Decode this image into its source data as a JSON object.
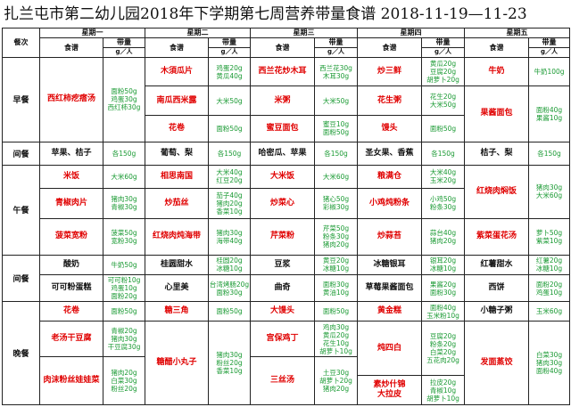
{
  "title": "扎兰屯市第二幼儿园2018年下学期第七周营养带量食谱  2018-11-19—11-23",
  "header": {
    "meal_col": "餐次",
    "days": [
      "星期一",
      "星期二",
      "星期三",
      "星期四",
      "星期五"
    ],
    "menu_label": "食谱",
    "qty_label": "带量",
    "unit_label": "g／人"
  },
  "meals": {
    "breakfast": "早餐",
    "snack1": "间餐",
    "lunch": "午餐",
    "snack2": "间餐",
    "dinner": "晚餐"
  },
  "rows": [
    {
      "meal": "breakfast",
      "rowspan": 3,
      "cells": [
        {
          "dish": "西红柿疙瘩汤",
          "qty": "面粉50g\n鸡蛋30g\n西红柿30g",
          "color": "red",
          "rowspan": 3
        },
        {
          "dish": "木須瓜片",
          "qty": "鸡蛋20g\n黄瓜40g",
          "color": "red"
        },
        {
          "dish": "西兰花炒木耳",
          "qty": "西兰花30g\n木耳30g",
          "color": "red"
        },
        {
          "dish": "炒三鲜",
          "qty": "黄瓜20g\n豆腐20g\n胡萝卜20g",
          "color": "red"
        },
        {
          "dish": "牛奶",
          "qty": "牛奶100g",
          "color": "red"
        }
      ]
    },
    {
      "cells": [
        {
          "dish": "南瓜西米露",
          "qty": "大米50g",
          "color": "red"
        },
        {
          "dish": "米粥",
          "qty": "大米50g",
          "color": "red"
        },
        {
          "dish": "花生粥",
          "qty": "花生20g\n大米50g",
          "color": "red"
        },
        {
          "dish": "果酱面包",
          "qty": "面粉40g\n果酱10g",
          "color": "red",
          "rowspan": 2
        }
      ]
    },
    {
      "cells": [
        {
          "dish": "花卷",
          "qty": "面粉50g",
          "color": "red"
        },
        {
          "dish": "蜜豆面包",
          "qty": "蜜豆10g\n面粉50g",
          "color": "red"
        },
        {
          "dish": "馒头",
          "qty": "面粉50g",
          "color": "red"
        }
      ]
    },
    {
      "meal": "snack1",
      "rowspan": 1,
      "cells": [
        {
          "dish": "苹果、桔子",
          "qty": "各150g",
          "color": "blk"
        },
        {
          "dish": "葡萄、梨",
          "qty": "各150g",
          "color": "blk"
        },
        {
          "dish": "哈密瓜、苹果",
          "qty": "各150g",
          "color": "blk"
        },
        {
          "dish": "圣女果、香蕉",
          "qty": "各150g",
          "color": "blk"
        },
        {
          "dish": "桔子、梨",
          "qty": "各150g",
          "color": "blk"
        }
      ]
    },
    {
      "meal": "lunch",
      "rowspan": 3,
      "cells": [
        {
          "dish": "米饭",
          "qty": "大米60g",
          "color": "red"
        },
        {
          "dish": "相思南国",
          "qty": "大米40g\n红豆20g",
          "color": "red"
        },
        {
          "dish": "大米饭",
          "qty": "大米60g",
          "color": "red"
        },
        {
          "dish": "粮满仓",
          "qty": "大米40g\n玉米20g",
          "color": "red"
        },
        {
          "dish": "红烧肉焖饭",
          "qty": "猪肉30g\n大米60g",
          "color": "red",
          "rowspan": 2
        }
      ]
    },
    {
      "cells": [
        {
          "dish": "青椒肉片",
          "qty": "猪肉30g\n青椒30g",
          "color": "red"
        },
        {
          "dish": "炒茄丝",
          "qty": "茄子40g\n猪肉20g\n香菜10g",
          "color": "red"
        },
        {
          "dish": "炒菜心",
          "qty": "猪心50g\n彩椒30g",
          "color": "red"
        },
        {
          "dish": "小鸡炖粉条",
          "qty": "小鸡50g\n粉条30g",
          "color": "red"
        }
      ]
    },
    {
      "cells": [
        {
          "dish": "菠菜宽粉",
          "qty": "菠菜50g\n宽粉30g",
          "color": "red"
        },
        {
          "dish": "红烧肉炖海带",
          "qty": "猪肉30g\n海带40g",
          "color": "red"
        },
        {
          "dish": "芹菜粉",
          "qty": "芹菜50g\n粉条30g\n猪肉20g",
          "color": "red"
        },
        {
          "dish": "炒蒜苔",
          "qty": "蒜台40g\n猪肉20g",
          "color": "red"
        },
        {
          "dish": "紫菜蛋花汤",
          "qty": "萝卜50g\n紫菜10g",
          "color": "red"
        }
      ]
    },
    {
      "meal": "snack2",
      "rowspan": 2,
      "cells": [
        {
          "dish": "酸奶",
          "qty": "牛奶50g",
          "color": "blk"
        },
        {
          "dish": "桂圆甜水",
          "qty": "桂圆20g\n冰糖10g",
          "color": "blk"
        },
        {
          "dish": "豆浆",
          "qty": "黄豆20g\n冰糖10g",
          "color": "blk"
        },
        {
          "dish": "冰糖银耳",
          "qty": "银耳20g\n冰糖10g",
          "color": "blk"
        },
        {
          "dish": "红薯甜水",
          "qty": "红薯20g\n冰糖10g",
          "color": "blk"
        }
      ]
    },
    {
      "cells": [
        {
          "dish": "可可粉蛋糕",
          "qty": "可可粉10g\n鸡蛋10g\n面粉20g",
          "color": "blk"
        },
        {
          "dish": "心里美",
          "qty": "台湾烤肠20g\n面粉30g",
          "color": "blk"
        },
        {
          "dish": "曲奇",
          "qty": "面粉30g\n黄油10g",
          "color": "blk"
        },
        {
          "dish": "草莓果酱面包",
          "qty": "果酱20g\n面粉30g",
          "color": "blk"
        },
        {
          "dish": "西饼",
          "qty": "面粉20g\n鸡蛋10g",
          "color": "blk"
        }
      ]
    },
    {
      "meal": "dinner",
      "rowspan": 4,
      "cells": [
        {
          "dish": "花卷",
          "qty": "面粉50g",
          "color": "red"
        },
        {
          "dish": "糖三角",
          "qty": "面粉50g",
          "color": "red"
        },
        {
          "dish": "大馒头",
          "qty": "面粉50g",
          "color": "red"
        },
        {
          "dish": "黄金糕",
          "qty": "面粉40g\n玉米粉10g",
          "color": "red"
        },
        {
          "dish": "小糖子粥",
          "qty": "玉米60g",
          "color": "blk"
        }
      ]
    },
    {
      "cells": [
        {
          "dish": "老汤干豆腐",
          "qty": "青椒20g\n猪肉30g\n干豆腐30g",
          "color": "red"
        },
        {
          "dish": "糖醋小丸子",
          "qty": "猪肉30g\n粉丝20g\n香菜10g",
          "color": "red",
          "rowspan": 3
        },
        {
          "dish": "宫保鸡丁",
          "qty": "鸡肉30g\n黄瓜20g\n花生10g\n胡萝卜10g",
          "color": "red"
        },
        {
          "dish": "炖四白",
          "qty": "豆腐20g\n粉条20g\n白菜20g\n五花肉20g",
          "color": "red",
          "rowspan": 2
        },
        {
          "dish": "发面蒸饺",
          "qty": "白菜30g\n猪肉30g\n面粉40g",
          "color": "red",
          "rowspan": 3
        }
      ]
    },
    {
      "cells": [
        {
          "dish": "肉沫粉丝娃娃菜",
          "qty": "猪肉20g\n白菜30g\n粉丝20g",
          "color": "red",
          "rowspan": 2
        },
        {
          "dish": "三丝汤",
          "qty": "土豆30g\n胡萝卜20g\n猪肉20g",
          "color": "red",
          "rowspan": 2
        }
      ]
    },
    {
      "cells": [
        {
          "dish": "素炒什锦\n大拉皮",
          "qty": "拉皮20g\n青椒10g\n胡萝卜10g",
          "color": "red"
        }
      ]
    }
  ]
}
